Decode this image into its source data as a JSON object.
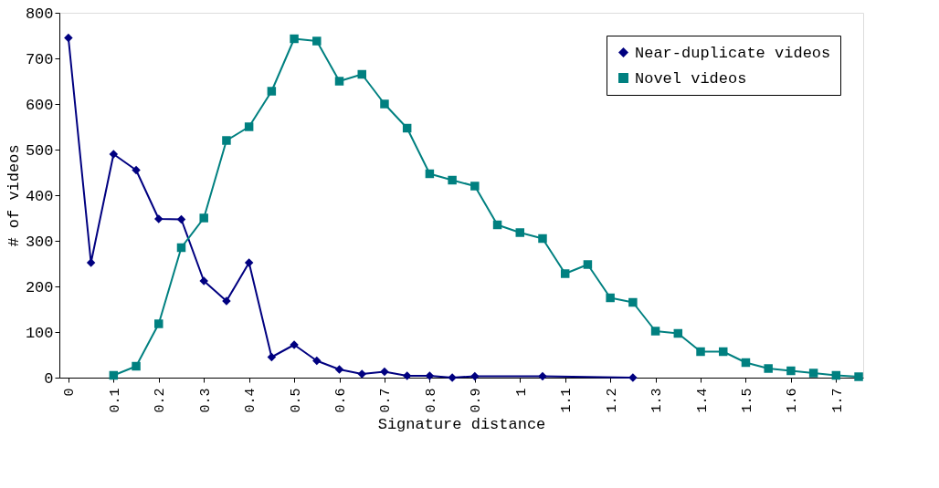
{
  "chart_data": {
    "type": "line",
    "xlabel": "Signature distance",
    "ylabel": "# of videos",
    "xlim": [
      -0.02,
      1.76
    ],
    "xticks": [
      0,
      0.1,
      0.2,
      0.3,
      0.4,
      0.5,
      0.6,
      0.7,
      0.8,
      0.9,
      1,
      1.1,
      1.2,
      1.3,
      1.4,
      1.5,
      1.6,
      1.7
    ],
    "ylim": [
      0,
      800
    ],
    "yticks": [
      0,
      100,
      200,
      300,
      400,
      500,
      600,
      700,
      800
    ],
    "grid": false,
    "legend": "top right",
    "series": [
      {
        "name": "Near-duplicate videos",
        "color": "#000080",
        "marker": "diamond",
        "x": [
          0,
          0.05,
          0.1,
          0.15,
          0.2,
          0.25,
          0.3,
          0.35,
          0.4,
          0.45,
          0.5,
          0.55,
          0.6,
          0.65,
          0.7,
          0.75,
          0.8,
          0.85,
          0.9,
          1.05,
          1.25
        ],
        "values": [
          745,
          252,
          490,
          455,
          348,
          347,
          212,
          168,
          252,
          45,
          72,
          37,
          18,
          8,
          13,
          4,
          4,
          0,
          3,
          3,
          0
        ]
      },
      {
        "name": "Novel videos",
        "color": "#008080",
        "marker": "square",
        "x": [
          0.1,
          0.15,
          0.2,
          0.25,
          0.3,
          0.35,
          0.4,
          0.45,
          0.5,
          0.55,
          0.6,
          0.65,
          0.7,
          0.75,
          0.8,
          0.85,
          0.9,
          0.95,
          1.0,
          1.05,
          1.1,
          1.15,
          1.2,
          1.25,
          1.3,
          1.35,
          1.4,
          1.45,
          1.5,
          1.55,
          1.6,
          1.65,
          1.7,
          1.75
        ],
        "values": [
          5,
          25,
          118,
          285,
          350,
          520,
          550,
          628,
          743,
          738,
          650,
          665,
          600,
          547,
          447,
          433,
          420,
          335,
          318,
          305,
          228,
          248,
          175,
          165,
          102,
          97,
          57,
          57,
          33,
          20,
          15,
          10,
          5,
          2
        ]
      }
    ]
  }
}
